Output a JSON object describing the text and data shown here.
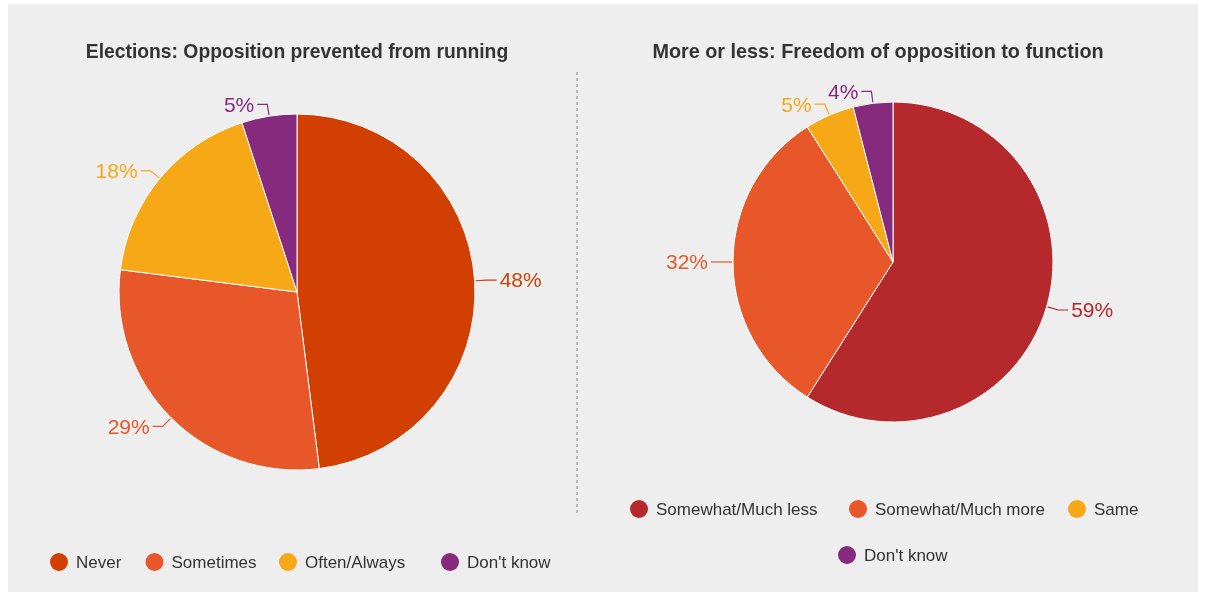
{
  "chart_data": [
    {
      "type": "pie",
      "title": "Elections: Opposition prevented from running",
      "categories": [
        "Never",
        "Sometimes",
        "Often/Always",
        "Don't know"
      ],
      "values": [
        48,
        29,
        18,
        5
      ],
      "value_labels": [
        "48%",
        "29%",
        "18%",
        "5%"
      ],
      "colors": [
        "#d13f02",
        "#e8572a",
        "#f7a816",
        "#862a7e"
      ],
      "legend": "bottom"
    },
    {
      "type": "pie",
      "title": "More or less: Freedom of opposition to function",
      "categories": [
        "Somewhat/Much less",
        "Somewhat/Much more",
        "Same",
        "Don't know"
      ],
      "values": [
        59,
        32,
        5,
        4
      ],
      "value_labels": [
        "59%",
        "32%",
        "5%",
        "4%"
      ],
      "colors": [
        "#b5282c",
        "#e8572a",
        "#f7a816",
        "#862a7e"
      ],
      "legend": "bottom"
    }
  ]
}
